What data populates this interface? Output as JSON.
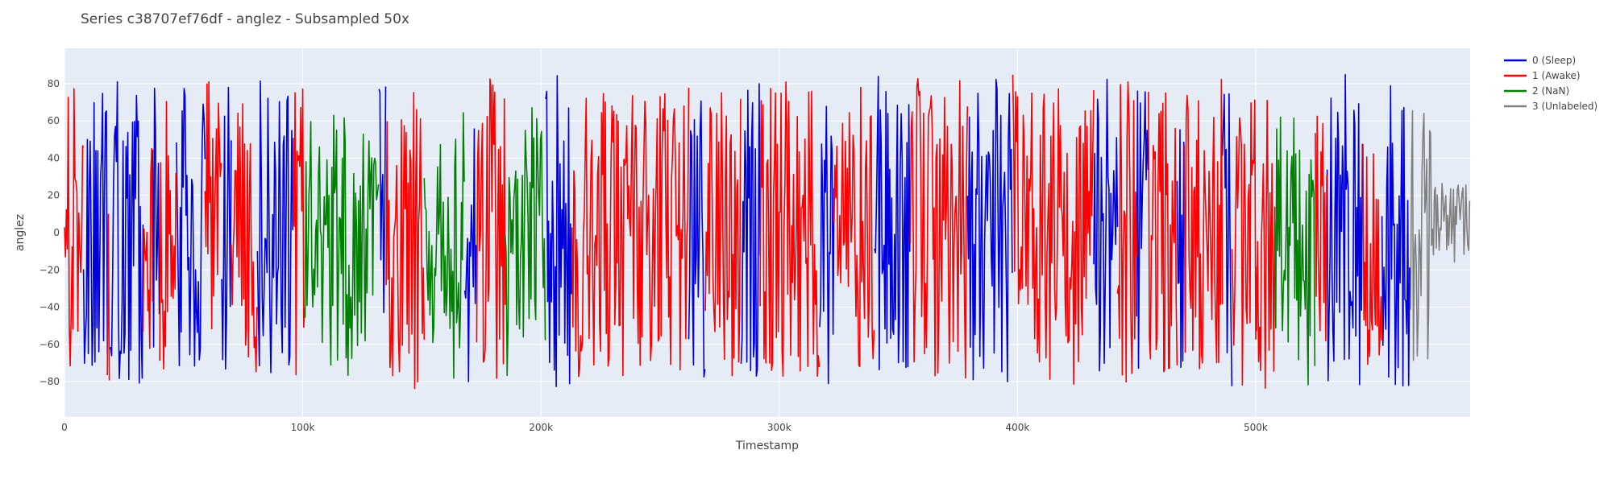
{
  "chart_data": {
    "type": "line",
    "title": "Series c38707ef76df - anglez - Subsampled 50x",
    "xlabel": "Timestamp",
    "ylabel": "anglez",
    "xlim": [
      0,
      590000
    ],
    "ylim": [
      -99,
      99
    ],
    "x_ticks": [
      0,
      100000,
      200000,
      300000,
      400000,
      500000
    ],
    "x_tick_labels": [
      "0",
      "100k",
      "200k",
      "300k",
      "400k",
      "500k"
    ],
    "y_ticks": [
      -80,
      -60,
      -40,
      -20,
      0,
      20,
      40,
      60,
      80
    ],
    "y_tick_labels": [
      "−80",
      "−60",
      "−40",
      "−20",
      "0",
      "20",
      "40",
      "60",
      "80"
    ],
    "grid": true,
    "legend_position": "top-right",
    "series": [
      {
        "name": "0 (Sleep)",
        "color": "#0000dd",
        "segments": [
          [
            8000,
            18000
          ],
          [
            19000,
            33000
          ],
          [
            37000,
            40000
          ],
          [
            47000,
            59000
          ],
          [
            66000,
            70000
          ],
          [
            81000,
            96000
          ],
          [
            132000,
            135000
          ],
          [
            168000,
            173000
          ],
          [
            202000,
            213000
          ],
          [
            262000,
            269000
          ],
          [
            284000,
            292000
          ],
          [
            317000,
            323000
          ],
          [
            340000,
            355000
          ],
          [
            379000,
            398000
          ],
          [
            432000,
            442000
          ],
          [
            450000,
            455000
          ],
          [
            467000,
            470000
          ],
          [
            486000,
            490000
          ],
          [
            530000,
            545000
          ],
          [
            553000,
            565000
          ]
        ]
      },
      {
        "name": "1 (Awake)",
        "color": "#ff0000",
        "segments": [
          [
            0,
            8000
          ],
          [
            18000,
            19000
          ],
          [
            33000,
            37000
          ],
          [
            40000,
            47000
          ],
          [
            59000,
            66000
          ],
          [
            70000,
            81000
          ],
          [
            96000,
            101000
          ],
          [
            135000,
            151000
          ],
          [
            173000,
            185000
          ],
          [
            213000,
            232000
          ],
          [
            232000,
            262000
          ],
          [
            269000,
            284000
          ],
          [
            292000,
            317000
          ],
          [
            323000,
            340000
          ],
          [
            355000,
            379000
          ],
          [
            398000,
            432000
          ],
          [
            442000,
            450000
          ],
          [
            455000,
            467000
          ],
          [
            470000,
            486000
          ],
          [
            490000,
            500000
          ],
          [
            500000,
            508000
          ],
          [
            525000,
            530000
          ],
          [
            545000,
            553000
          ]
        ]
      },
      {
        "name": "2 (NaN)",
        "color": "#008000",
        "segments": [
          [
            101000,
            132000
          ],
          [
            151000,
            168000
          ],
          [
            185000,
            202000
          ],
          [
            508000,
            525000
          ]
        ]
      },
      {
        "name": "3 (Unlabeled)",
        "color": "#808080",
        "segments": [
          [
            565000,
            590000
          ]
        ]
      }
    ]
  }
}
